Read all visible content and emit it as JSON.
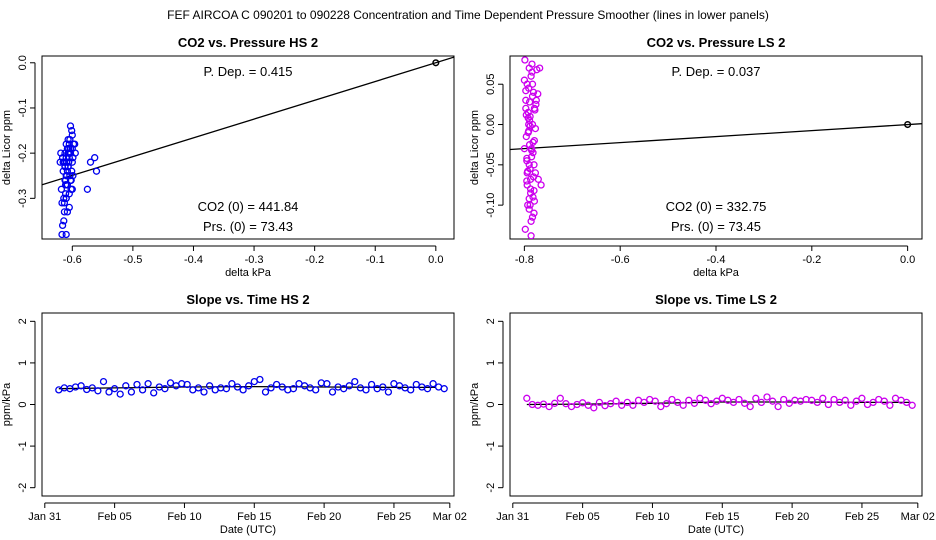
{
  "figure": {
    "title": "FEF   AIRCOA C   090201 to 090228   Concentration and Time Dependent Pressure Smoother (lines in lower panels)"
  },
  "colors": {
    "hs": "#0000ee",
    "ls": "#cc00ee",
    "fit": "#000000",
    "ref": "#000000"
  },
  "chart_data": [
    {
      "id": "co2-hs",
      "type": "scatter",
      "title": "CO2 vs. Pressure HS 2",
      "xlabel": "delta kPa",
      "ylabel": "delta Licor ppm",
      "xlim": [
        -0.65,
        0.03
      ],
      "ylim": [
        -0.39,
        0.015
      ],
      "xticks": [
        -0.6,
        -0.5,
        -0.4,
        -0.3,
        -0.2,
        -0.1,
        0.0
      ],
      "xtick_labels": [
        "-0.6",
        "-0.5",
        "-0.4",
        "-0.3",
        "-0.2",
        "-0.1",
        "0.0"
      ],
      "yticks": [
        0.0,
        -0.1,
        -0.2,
        -0.3
      ],
      "ytick_labels": [
        "0.0",
        "-0.1",
        "-0.2",
        "-0.3"
      ],
      "annotations": {
        "pdep": "P. Dep. =  0.415",
        "co2": "CO2 (0) =  441.84",
        "prs": "Prs. (0) =  73.43"
      },
      "fit_line": {
        "x": [
          -0.65,
          0.03
        ],
        "y": [
          -0.27,
          0.0125
        ]
      },
      "reference_point": [
        0.0,
        0.0
      ],
      "x": [
        -0.61,
        -0.607,
        -0.613,
        -0.604,
        -0.6,
        -0.616,
        -0.61,
        -0.603,
        -0.598,
        -0.612,
        -0.606,
        -0.62,
        -0.608,
        -0.601,
        -0.615,
        -0.605,
        -0.611,
        -0.6,
        -0.596,
        -0.618,
        -0.609,
        -0.603,
        -0.614,
        -0.607,
        -0.599,
        -0.612,
        -0.605,
        -0.61,
        -0.602,
        -0.617,
        -0.608,
        -0.604,
        -0.611,
        -0.6,
        -0.613,
        -0.606,
        -0.609,
        -0.602,
        -0.614,
        -0.607,
        -0.603,
        -0.61,
        -0.599,
        -0.612,
        -0.605,
        -0.608,
        -0.616,
        -0.601,
        -0.611,
        -0.606,
        -0.595,
        -0.61,
        -0.604,
        -0.613,
        -0.607,
        -0.6,
        -0.612,
        -0.608,
        -0.603,
        -0.617,
        -0.575,
        -0.57,
        -0.563,
        -0.56,
        -0.61,
        -0.615,
        -0.619,
        -0.605,
        -0.61,
        -0.602
      ],
      "y": [
        -0.18,
        -0.2,
        -0.22,
        -0.17,
        -0.16,
        -0.21,
        -0.25,
        -0.19,
        -0.18,
        -0.23,
        -0.2,
        -0.22,
        -0.27,
        -0.15,
        -0.24,
        -0.21,
        -0.26,
        -0.19,
        -0.18,
        -0.28,
        -0.22,
        -0.2,
        -0.3,
        -0.17,
        -0.25,
        -0.23,
        -0.29,
        -0.21,
        -0.26,
        -0.31,
        -0.24,
        -0.2,
        -0.27,
        -0.22,
        -0.33,
        -0.19,
        -0.25,
        -0.28,
        -0.35,
        -0.23,
        -0.14,
        -0.3,
        -0.21,
        -0.26,
        -0.32,
        -0.19,
        -0.36,
        -0.24,
        -0.29,
        -0.22,
        -0.2,
        -0.27,
        -0.25,
        -0.31,
        -0.23,
        -0.28,
        -0.2,
        -0.33,
        -0.26,
        -0.38,
        -0.28,
        -0.22,
        -0.21,
        -0.24,
        -0.38,
        -0.22,
        -0.2,
        -0.18,
        -0.3,
        -0.26
      ]
    },
    {
      "id": "co2-ls",
      "type": "scatter",
      "title": "CO2 vs. Pressure LS 2",
      "xlabel": "delta kPa",
      "ylabel": "delta Licor ppm",
      "xlim": [
        -0.83,
        0.03
      ],
      "ylim": [
        -0.142,
        0.085
      ],
      "xticks": [
        -0.8,
        -0.6,
        -0.4,
        -0.2,
        0.0
      ],
      "xtick_labels": [
        "-0.8",
        "-0.6",
        "-0.4",
        "-0.2",
        "0.0"
      ],
      "yticks": [
        0.05,
        0.0,
        -0.05,
        -0.1
      ],
      "ytick_labels": [
        "0.05",
        "0.00",
        "-0.05",
        "-0.10"
      ],
      "annotations": {
        "pdep": "P. Dep. =  0.037",
        "co2": "CO2 (0) =  332.75",
        "prs": "Prs. (0) =  73.45"
      },
      "fit_line": {
        "x": [
          -0.83,
          0.03
        ],
        "y": [
          -0.031,
          0.001
        ]
      },
      "reference_point": [
        0.0,
        0.0
      ],
      "x": [
        -0.79,
        -0.786,
        -0.794,
        -0.781,
        -0.775,
        -0.797,
        -0.788,
        -0.783,
        -0.792,
        -0.779,
        -0.8,
        -0.785,
        -0.79,
        -0.777,
        -0.795,
        -0.787,
        -0.782,
        -0.793,
        -0.78,
        -0.798,
        -0.784,
        -0.791,
        -0.776,
        -0.789,
        -0.796,
        -0.782,
        -0.788,
        -0.794,
        -0.779,
        -0.786,
        -0.8,
        -0.783,
        -0.792,
        -0.777,
        -0.789,
        -0.795,
        -0.781,
        -0.787,
        -0.79,
        -0.784,
        -0.797,
        -0.778,
        -0.791,
        -0.785,
        -0.793,
        -0.78,
        -0.788,
        -0.796,
        -0.782,
        -0.789,
        -0.774,
        -0.772,
        -0.795,
        -0.787,
        -0.79,
        -0.783,
        -0.799,
        -0.786,
        -0.792,
        -0.78,
        -0.768,
        -0.771,
        -0.765,
        -0.797,
        -0.785,
        -0.791,
        -0.779,
        -0.794,
        -0.788,
        -0.783
      ],
      "y": [
        0.07,
        0.06,
        0.05,
        0.04,
        0.03,
        0.02,
        0.01,
        0.0,
        -0.01,
        -0.02,
        -0.03,
        -0.04,
        -0.05,
        -0.06,
        -0.07,
        -0.08,
        -0.09,
        -0.1,
        -0.11,
        -0.13,
        0.065,
        0.045,
        0.025,
        0.005,
        -0.015,
        -0.035,
        -0.055,
        -0.075,
        -0.095,
        -0.12,
        0.055,
        0.035,
        0.015,
        -0.005,
        -0.025,
        -0.045,
        -0.065,
        -0.085,
        -0.105,
        0.075,
        0.042,
        0.018,
        -0.008,
        -0.032,
        -0.058,
        -0.082,
        -0.002,
        0.012,
        -0.022,
        0.028,
        0.068,
        0.038,
        -0.042,
        -0.068,
        -0.092,
        -0.115,
        0.08,
        -0.138,
        0.008,
        -0.05,
        0.07,
        -0.068,
        -0.075,
        0.03,
        -0.03,
        0.0,
        0.02,
        -0.06,
        -0.1,
        0.05
      ]
    },
    {
      "id": "slope-hs",
      "type": "scatter",
      "title": "Slope vs. Time HS 2",
      "xlabel": "Date (UTC)",
      "ylabel": "ppm/kPa",
      "xlim": [
        -0.2,
        29.3
      ],
      "ylim": [
        -2.2,
        2.2
      ],
      "xticks": [
        0,
        5,
        10,
        15,
        20,
        25,
        29
      ],
      "xtick_labels": [
        "Jan 31",
        "Feb 05",
        "Feb 10",
        "Feb 15",
        "Feb 20",
        "Feb 25",
        "Mar 02"
      ],
      "yticks": [
        -2,
        -1,
        0,
        1,
        2
      ],
      "ytick_labels": [
        "-2",
        "-1",
        "0",
        "1",
        "2"
      ],
      "smoother": {
        "x": [
          1,
          5,
          10,
          15,
          20,
          25,
          28
        ],
        "y": [
          0.38,
          0.4,
          0.42,
          0.43,
          0.42,
          0.41,
          0.41
        ]
      },
      "x": [
        1.0,
        1.4,
        1.8,
        2.2,
        2.6,
        3.0,
        3.4,
        3.8,
        4.2,
        4.6,
        5.0,
        5.4,
        5.8,
        6.2,
        6.6,
        7.0,
        7.4,
        7.8,
        8.2,
        8.6,
        9.0,
        9.4,
        9.8,
        10.2,
        10.6,
        11.0,
        11.4,
        11.8,
        12.2,
        12.6,
        13.0,
        13.4,
        13.8,
        14.2,
        14.6,
        15.0,
        15.4,
        15.8,
        16.2,
        16.6,
        17.0,
        17.4,
        17.8,
        18.2,
        18.6,
        19.0,
        19.4,
        19.8,
        20.2,
        20.6,
        21.0,
        21.4,
        21.8,
        22.2,
        22.6,
        23.0,
        23.4,
        23.8,
        24.2,
        24.6,
        25.0,
        25.4,
        25.8,
        26.2,
        26.6,
        27.0,
        27.4,
        27.8,
        28.2,
        28.6
      ],
      "y": [
        0.35,
        0.4,
        0.38,
        0.42,
        0.45,
        0.36,
        0.4,
        0.33,
        0.55,
        0.3,
        0.38,
        0.25,
        0.45,
        0.3,
        0.48,
        0.35,
        0.5,
        0.28,
        0.42,
        0.38,
        0.52,
        0.45,
        0.5,
        0.48,
        0.35,
        0.4,
        0.3,
        0.45,
        0.35,
        0.4,
        0.38,
        0.5,
        0.42,
        0.35,
        0.45,
        0.55,
        0.6,
        0.3,
        0.4,
        0.48,
        0.42,
        0.35,
        0.38,
        0.5,
        0.45,
        0.4,
        0.35,
        0.52,
        0.5,
        0.3,
        0.42,
        0.38,
        0.45,
        0.55,
        0.4,
        0.35,
        0.48,
        0.38,
        0.42,
        0.3,
        0.5,
        0.45,
        0.4,
        0.35,
        0.48,
        0.42,
        0.38,
        0.5,
        0.42,
        0.38
      ]
    },
    {
      "id": "slope-ls",
      "type": "scatter",
      "title": "Slope vs. Time LS 2",
      "xlabel": "Date (UTC)",
      "ylabel": "ppm/kPa",
      "xlim": [
        -0.2,
        29.3
      ],
      "ylim": [
        -2.2,
        2.2
      ],
      "xticks": [
        0,
        5,
        10,
        15,
        20,
        25,
        29
      ],
      "xtick_labels": [
        "Jan 31",
        "Feb 05",
        "Feb 10",
        "Feb 15",
        "Feb 20",
        "Feb 25",
        "Mar 02"
      ],
      "yticks": [
        -2,
        -1,
        0,
        1,
        2
      ],
      "ytick_labels": [
        "-2",
        "-1",
        "0",
        "1",
        "2"
      ],
      "smoother": {
        "x": [
          1,
          5,
          10,
          15,
          20,
          25,
          28.5
        ],
        "y": [
          0.0,
          0.01,
          0.03,
          0.06,
          0.06,
          0.05,
          0.05
        ]
      },
      "x": [
        1.0,
        1.4,
        1.8,
        2.2,
        2.6,
        3.0,
        3.4,
        3.8,
        4.2,
        4.6,
        5.0,
        5.4,
        5.8,
        6.2,
        6.6,
        7.0,
        7.4,
        7.8,
        8.2,
        8.6,
        9.0,
        9.4,
        9.8,
        10.2,
        10.6,
        11.0,
        11.4,
        11.8,
        12.2,
        12.6,
        13.0,
        13.4,
        13.8,
        14.2,
        14.6,
        15.0,
        15.4,
        15.8,
        16.2,
        16.6,
        17.0,
        17.4,
        17.8,
        18.2,
        18.6,
        19.0,
        19.4,
        19.8,
        20.2,
        20.6,
        21.0,
        21.4,
        21.8,
        22.2,
        22.6,
        23.0,
        23.4,
        23.8,
        24.2,
        24.6,
        25.0,
        25.4,
        25.8,
        26.2,
        26.6,
        27.0,
        27.4,
        27.8,
        28.2,
        28.6
      ],
      "y": [
        0.15,
        0.0,
        -0.02,
        0.01,
        -0.05,
        0.03,
        0.15,
        0.02,
        -0.05,
        0.0,
        0.04,
        -0.02,
        -0.08,
        0.05,
        -0.03,
        0.02,
        0.08,
        -0.02,
        0.05,
        -0.02,
        0.1,
        0.05,
        0.12,
        0.08,
        -0.05,
        0.02,
        0.12,
        0.05,
        -0.02,
        0.1,
        0.03,
        0.15,
        0.1,
        0.02,
        0.08,
        0.15,
        0.1,
        0.05,
        0.12,
        0.03,
        -0.05,
        0.15,
        0.05,
        0.18,
        0.08,
        -0.05,
        0.12,
        0.03,
        0.1,
        0.08,
        0.12,
        0.1,
        0.05,
        0.15,
        0.0,
        0.12,
        0.05,
        0.1,
        -0.02,
        0.08,
        0.15,
        0.0,
        0.05,
        0.12,
        0.08,
        -0.02,
        0.15,
        0.1,
        0.05,
        -0.02
      ]
    }
  ]
}
